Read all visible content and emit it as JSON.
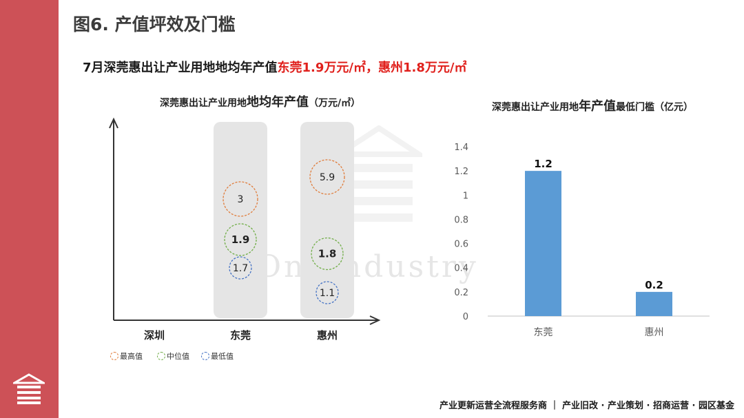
{
  "page": {
    "figure_title": "图6. 产值坪效及门槛",
    "headline_prefix": "7月深莞惠出让产业用地地均年产值",
    "headline_dg": "东莞1.9万元/㎡",
    "headline_sep": "，",
    "headline_hz": "惠州1.8万元/㎡",
    "footer": "产业更新运营全流程服务商 ｜ 产业旧改 · 产业策划 · 招商运营 · 园区基金",
    "watermark_text": "OneIndustry",
    "colors": {
      "side_bar": "#cd5157",
      "accent_red": "#e0201c",
      "bar": "#5b9bd5",
      "max": "#e07b39",
      "median": "#70ad47",
      "min": "#4472c4"
    }
  },
  "chart_data": [
    {
      "type": "scatter",
      "title_small1": "深莞惠出让产业用地",
      "title_big": "地均年产值",
      "title_small2": "（万元/㎡）",
      "categories": [
        "深圳",
        "东莞",
        "惠州"
      ],
      "legend": {
        "max_label": "最高值",
        "median_label": "中位值",
        "min_label": "最低值",
        "placement": "bottom-left"
      },
      "series": [
        {
          "name": "最高值",
          "values": [
            null,
            3,
            5.9
          ],
          "labels": [
            "",
            "3",
            "5.9"
          ]
        },
        {
          "name": "中位值",
          "values": [
            null,
            1.9,
            1.8
          ],
          "labels": [
            "",
            "1.9",
            "1.8"
          ]
        },
        {
          "name": "最低值",
          "values": [
            null,
            1.7,
            1.1
          ],
          "labels": [
            "",
            "1.7",
            "1.1"
          ]
        }
      ],
      "grid": false
    },
    {
      "type": "bar",
      "title_small1": "深莞惠出让产业用地",
      "title_big": "年产值",
      "title_small2": "最低门槛（亿元）",
      "categories": [
        "东莞",
        "惠州"
      ],
      "values": [
        1.2,
        0.2
      ],
      "value_labels": [
        "1.2",
        "0.2"
      ],
      "ylim": [
        0,
        1.4
      ],
      "yticks": [
        "0",
        "0.2",
        "0.4",
        "0.6",
        "0.8",
        "1",
        "1.2",
        "1.4"
      ],
      "grid": false
    }
  ]
}
